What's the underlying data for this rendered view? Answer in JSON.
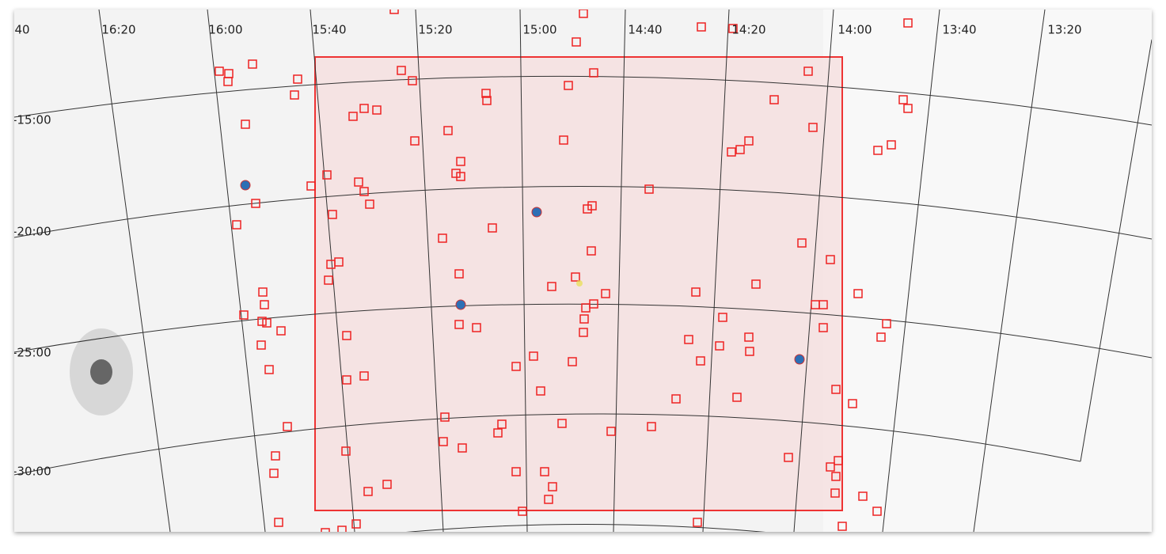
{
  "ra_labels": [
    "40",
    "16:20",
    "16:00",
    "15:40",
    "15:20",
    "15:00",
    "14:40",
    "14:20",
    "14:00",
    "13:40",
    "13:20"
  ],
  "dec_labels": [
    "-15:00",
    "-20:00",
    "-25:00",
    "-30:00"
  ]
}
